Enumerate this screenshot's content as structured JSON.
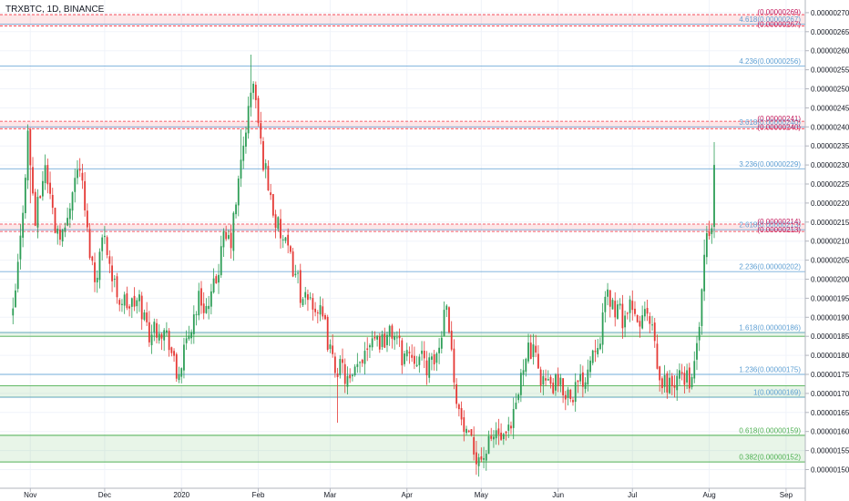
{
  "header": {
    "ticker": "TRXBTC, 1D, BINANCE"
  },
  "chart_data": {
    "type": "candlestick",
    "title": "TRXBTC, 1D, BINANCE",
    "ylim": [
      1.47e-06,
      2.72e-06
    ],
    "y_ticks": [
      "0.00000150",
      "0.00000155",
      "0.00000160",
      "0.00000165",
      "0.00000170",
      "0.00000175",
      "0.00000180",
      "0.00000185",
      "0.00000190",
      "0.00000195",
      "0.00000200",
      "0.00000205",
      "0.00000210",
      "0.00000215",
      "0.00000220",
      "0.00000225",
      "0.00000230",
      "0.00000235",
      "0.00000240",
      "0.00000245",
      "0.00000250",
      "0.00000255",
      "0.00000260",
      "0.00000265",
      "0.00000270"
    ],
    "x_ticks": [
      {
        "label": "Nov",
        "day": 0
      },
      {
        "label": "Dec",
        "day": 30
      },
      {
        "label": "2020",
        "day": 61
      },
      {
        "label": "Feb",
        "day": 92
      },
      {
        "label": "Mar",
        "day": 121
      },
      {
        "label": "Apr",
        "day": 152
      },
      {
        "label": "May",
        "day": 182
      },
      {
        "label": "Jun",
        "day": 213
      },
      {
        "label": "Jul",
        "day": 243
      },
      {
        "label": "Aug",
        "day": 274
      },
      {
        "label": "Sep",
        "day": 305
      }
    ],
    "fib_levels": [
      {
        "ratio": "0.382",
        "price": "0.00000152",
        "value": 1.52e-06,
        "color": "#4caf50"
      },
      {
        "ratio": "0.618",
        "price": "0.00000159",
        "value": 1.59e-06,
        "color": "#4caf50"
      },
      {
        "ratio": "1",
        "price": "0.00000169",
        "value": 1.69e-06,
        "color": "#5d9fd3"
      },
      {
        "ratio": "1.236",
        "price": "0.00000175",
        "value": 1.75e-06,
        "color": "#5d9fd3"
      },
      {
        "ratio": "1.618",
        "price": "0.00000186",
        "value": 1.86e-06,
        "color": "#5d9fd3"
      },
      {
        "ratio": "2.236",
        "price": "0.00000202",
        "value": 2.02e-06,
        "color": "#5d9fd3"
      },
      {
        "ratio": "2.618",
        "price": "0.00000213",
        "value": 2.13e-06,
        "color": "#5d9fd3"
      },
      {
        "ratio": "3.236",
        "price": "0.00000229",
        "value": 2.29e-06,
        "color": "#5d9fd3"
      },
      {
        "ratio": "3.618",
        "price": "0.00000240",
        "value": 2.4e-06,
        "color": "#5d9fd3"
      },
      {
        "ratio": "4.236",
        "price": "0.00000256",
        "value": 2.56e-06,
        "color": "#5d9fd3"
      },
      {
        "ratio": "4.618",
        "price": "0.00000267",
        "value": 2.67e-06,
        "color": "#5d9fd3"
      }
    ],
    "resistance_labels": [
      {
        "text": "(0.00000269)",
        "value": 2.69e-06
      },
      {
        "text": "(0.00000267)",
        "value": 2.67e-06
      },
      {
        "text": "(0.00000241)",
        "value": 2.41e-06
      },
      {
        "text": "(0.00000240)",
        "value": 2.4e-06
      },
      {
        "text": "(0.00000214)",
        "value": 2.14e-06
      },
      {
        "text": "(0.00000213)",
        "value": 2.13e-06
      }
    ],
    "resistance_zones": [
      {
        "from": 2.67e-06,
        "to": 2.69e-06
      },
      {
        "from": 2.4e-06,
        "to": 2.41e-06
      },
      {
        "from": 2.13e-06,
        "to": 2.14e-06
      }
    ],
    "support_zones": [
      {
        "from": 1.52e-06,
        "to": 1.59e-06
      },
      {
        "from": 1.69e-06,
        "to": 1.72e-06
      },
      {
        "from": 1.85e-06,
        "to": 1.86e-06
      }
    ],
    "first_day": -7,
    "close_path": [
      [
        -7,
        1.9e-06
      ],
      [
        -4,
        2.1e-06
      ],
      [
        -1,
        2.38e-06
      ],
      [
        2,
        2.15e-06
      ],
      [
        6,
        2.3e-06
      ],
      [
        10,
        2.14e-06
      ],
      [
        14,
        2.12e-06
      ],
      [
        17,
        2.25e-06
      ],
      [
        20,
        2.3e-06
      ],
      [
        23,
        2.12e-06
      ],
      [
        26,
        2e-06
      ],
      [
        30,
        2.13e-06
      ],
      [
        33,
        2e-06
      ],
      [
        36,
        1.95e-06
      ],
      [
        40,
        1.93e-06
      ],
      [
        44,
        1.94e-06
      ],
      [
        48,
        1.86e-06
      ],
      [
        52,
        1.88e-06
      ],
      [
        56,
        1.84e-06
      ],
      [
        59,
        1.74e-06
      ],
      [
        62,
        1.8e-06
      ],
      [
        65,
        1.88e-06
      ],
      [
        68,
        1.95e-06
      ],
      [
        72,
        1.92e-06
      ],
      [
        75,
        2e-06
      ],
      [
        78,
        2.1e-06
      ],
      [
        81,
        2.1e-06
      ],
      [
        84,
        2.25e-06
      ],
      [
        87,
        2.4e-06
      ],
      [
        90,
        2.52e-06
      ],
      [
        93,
        2.35e-06
      ],
      [
        96,
        2.25e-06
      ],
      [
        99,
        2.15e-06
      ],
      [
        102,
        2.1e-06
      ],
      [
        105,
        2.05e-06
      ],
      [
        108,
        2e-06
      ],
      [
        110,
        1.93e-06
      ],
      [
        113,
        1.95e-06
      ],
      [
        116,
        1.92e-06
      ],
      [
        119,
        1.87e-06
      ],
      [
        122,
        1.78e-06
      ],
      [
        126,
        1.76e-06
      ],
      [
        129,
        1.72e-06
      ],
      [
        132,
        1.76e-06
      ],
      [
        135,
        1.82e-06
      ],
      [
        138,
        1.86e-06
      ],
      [
        141,
        1.84e-06
      ],
      [
        144,
        1.85e-06
      ],
      [
        147,
        1.86e-06
      ],
      [
        150,
        1.8e-06
      ],
      [
        153,
        1.81e-06
      ],
      [
        156,
        1.8e-06
      ],
      [
        159,
        1.78e-06
      ],
      [
        162,
        1.77e-06
      ],
      [
        165,
        1.82e-06
      ],
      [
        168,
        1.96e-06
      ],
      [
        170,
        1.8e-06
      ],
      [
        173,
        1.65e-06
      ],
      [
        176,
        1.58e-06
      ],
      [
        179,
        1.55e-06
      ],
      [
        182,
        1.53e-06
      ],
      [
        185,
        1.56e-06
      ],
      [
        188,
        1.6e-06
      ],
      [
        191,
        1.57e-06
      ],
      [
        194,
        1.6e-06
      ],
      [
        197,
        1.7e-06
      ],
      [
        200,
        1.82e-06
      ],
      [
        203,
        1.8e-06
      ],
      [
        206,
        1.75e-06
      ],
      [
        209,
        1.72e-06
      ],
      [
        212,
        1.72e-06
      ],
      [
        215,
        1.71e-06
      ],
      [
        218,
        1.7e-06
      ],
      [
        221,
        1.72e-06
      ],
      [
        224,
        1.75e-06
      ],
      [
        227,
        1.82e-06
      ],
      [
        230,
        1.86e-06
      ],
      [
        233,
        1.96e-06
      ],
      [
        236,
        1.92e-06
      ],
      [
        239,
        1.9e-06
      ],
      [
        242,
        1.92e-06
      ],
      [
        245,
        1.88e-06
      ],
      [
        248,
        1.91e-06
      ],
      [
        251,
        1.86e-06
      ],
      [
        254,
        1.72e-06
      ],
      [
        257,
        1.73e-06
      ],
      [
        260,
        1.72e-06
      ],
      [
        263,
        1.75e-06
      ],
      [
        266,
        1.74e-06
      ],
      [
        268,
        1.76e-06
      ],
      [
        271,
        1.95e-06
      ],
      [
        273,
        2.12e-06
      ],
      [
        275,
        2.12e-06
      ],
      [
        276,
        2.3e-06
      ]
    ]
  }
}
